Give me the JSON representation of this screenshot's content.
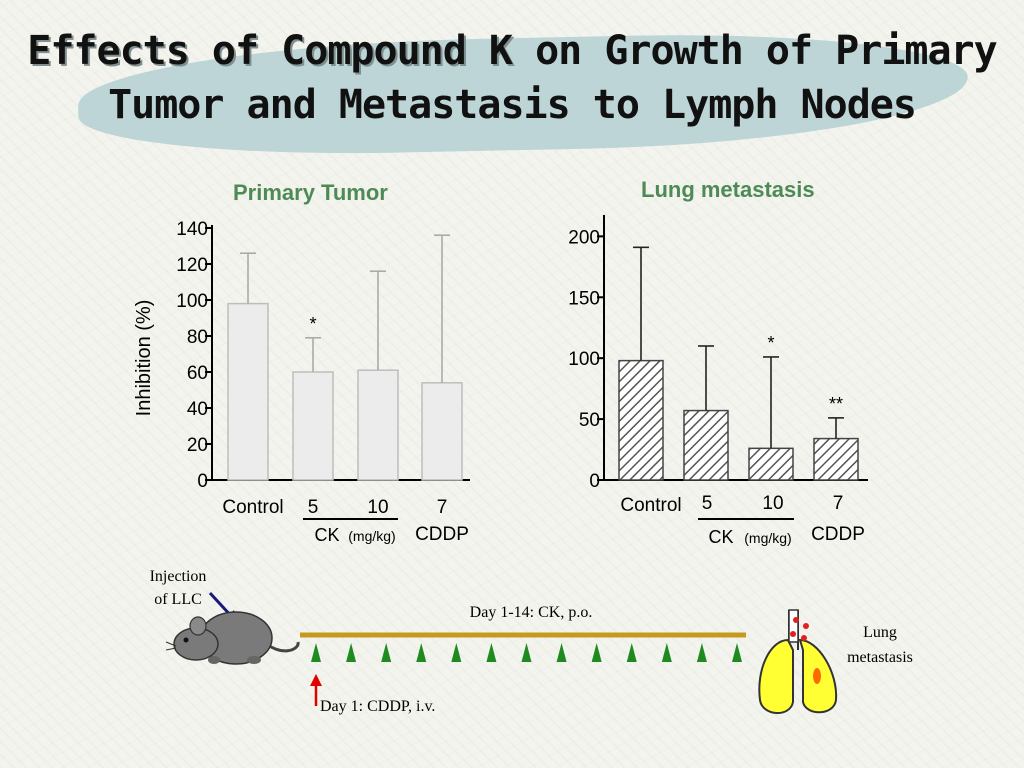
{
  "title": {
    "part1": "Effects of Compound K",
    "part2": " on Growth of Primary",
    "line2": "Tumor and Metastasis to Lymph Nodes"
  },
  "colors": {
    "panel_title": "#4e8a55",
    "bar_fill_left": "#ececec",
    "hatch": "#555555",
    "brush": "#b9d3d4"
  },
  "chart_data": [
    {
      "type": "bar",
      "title": "Primary Tumor",
      "ylabel": "Inhibition (%)",
      "ylim": [
        0,
        140
      ],
      "yticks": [
        "0",
        "20",
        "40",
        "60",
        "80",
        "100",
        "120",
        "140"
      ],
      "categories": [
        "Control",
        "5",
        "10",
        "7"
      ],
      "values": [
        98,
        60,
        61,
        54
      ],
      "errors": [
        28,
        19,
        55,
        82
      ],
      "significance": [
        "",
        "*",
        "",
        ""
      ],
      "group_labels": {
        "ck": "CK",
        "unit": "(mg/kg)",
        "cddp": "CDDP"
      },
      "fill": "plain"
    },
    {
      "type": "bar",
      "title": "Lung metastasis",
      "ylabel": "",
      "ylim": [
        0,
        220
      ],
      "yticks": [
        "0",
        "50",
        "100",
        "150",
        "200"
      ],
      "categories": [
        "Control",
        "5",
        "10",
        "7"
      ],
      "values": [
        98,
        57,
        26,
        34
      ],
      "errors": [
        93,
        53,
        75,
        17
      ],
      "significance": [
        "",
        "",
        "*",
        "**"
      ],
      "group_labels": {
        "ck": "CK",
        "unit": "(mg/kg)",
        "cddp": "CDDP"
      },
      "fill": "hatched"
    }
  ],
  "schedule": {
    "injection_label_line1": "Injection",
    "injection_label_line2": "of LLC",
    "ck_label": "Day 1-14: CK, p.o.",
    "cddp_label": "Day 1: CDDP, i.v.",
    "lung_label_line1": "Lung",
    "lung_label_line2": "metastasis",
    "dose_days": 13
  }
}
